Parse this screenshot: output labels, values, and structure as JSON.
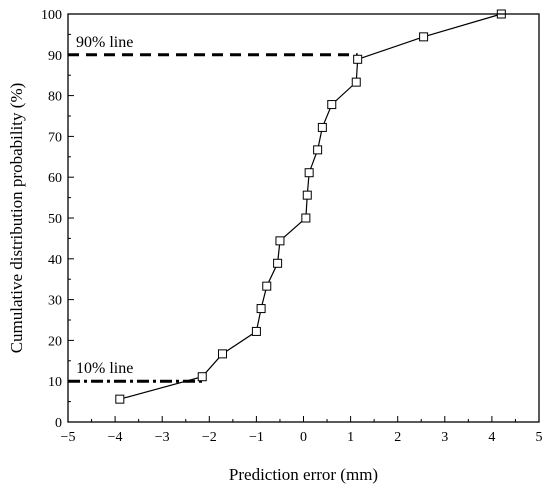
{
  "chart_data": {
    "type": "line",
    "xlabel": "Prediction error (mm)",
    "ylabel": "Cumulative distribution probability (%)",
    "xlim": [
      -5,
      5
    ],
    "ylim": [
      0,
      100
    ],
    "x_ticks": [
      "−5",
      "−4",
      "−3",
      "−2",
      "−1",
      "0",
      "1",
      "2",
      "3",
      "4",
      "5"
    ],
    "y_ticks": [
      "0",
      "10",
      "20",
      "30",
      "40",
      "50",
      "60",
      "70",
      "80",
      "90",
      "100"
    ],
    "grid": false,
    "legend": "none",
    "series": [
      {
        "marker": "open-square",
        "x": [
          -3.9,
          -2.15,
          -1.72,
          -1.0,
          -0.9,
          -0.78,
          -0.55,
          -0.5,
          0.05,
          0.08,
          0.12,
          0.3,
          0.4,
          0.6,
          1.12,
          1.15,
          2.55,
          4.2
        ],
        "y": [
          5.6,
          11.1,
          16.7,
          22.2,
          27.8,
          33.3,
          38.9,
          44.4,
          50.0,
          55.6,
          61.1,
          66.7,
          72.2,
          77.8,
          83.3,
          88.9,
          94.4,
          100.0
        ]
      }
    ],
    "reference_lines": [
      {
        "label": "90% line",
        "y": 90,
        "x_from": -5,
        "x_to": 1.15,
        "style": "dashed"
      },
      {
        "label": "10% line",
        "y": 10,
        "x_from": -5,
        "x_to": -2.15,
        "style": "dash-dot"
      }
    ]
  }
}
